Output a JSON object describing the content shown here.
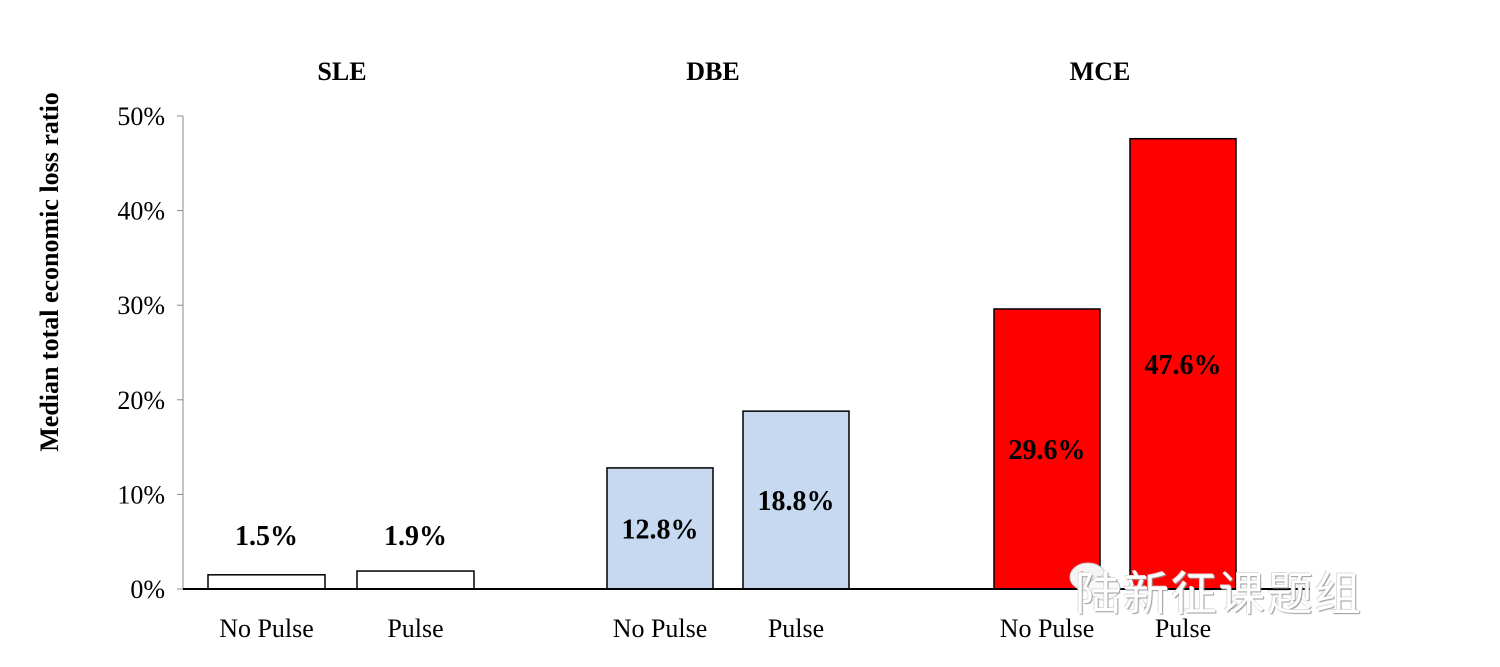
{
  "chart_data": {
    "type": "bar",
    "ylabel": "Median total economic loss ratio",
    "ylim": [
      0,
      50
    ],
    "yticks": [
      0,
      10,
      20,
      30,
      40,
      50
    ],
    "ytick_labels": [
      "0%",
      "10%",
      "20%",
      "30%",
      "40%",
      "50%"
    ],
    "groups": [
      {
        "name": "SLE",
        "fill": "#ffffff",
        "bars": [
          {
            "category": "No Pulse",
            "value": 1.5,
            "label": "1.5%"
          },
          {
            "category": "Pulse",
            "value": 1.9,
            "label": "1.9%"
          }
        ]
      },
      {
        "name": "DBE",
        "fill": "#c6d9f0",
        "bars": [
          {
            "category": "No Pulse",
            "value": 12.8,
            "label": "12.8%"
          },
          {
            "category": "Pulse",
            "value": 18.8,
            "label": "18.8%"
          }
        ]
      },
      {
        "name": "MCE",
        "fill": "#ff0000",
        "bars": [
          {
            "category": "No Pulse",
            "value": 29.6,
            "label": "29.6%"
          },
          {
            "category": "Pulse",
            "value": 47.6,
            "label": "47.6%"
          }
        ]
      }
    ]
  },
  "watermark": {
    "text": "陆新征课题组",
    "icon": "wechat-icon"
  }
}
